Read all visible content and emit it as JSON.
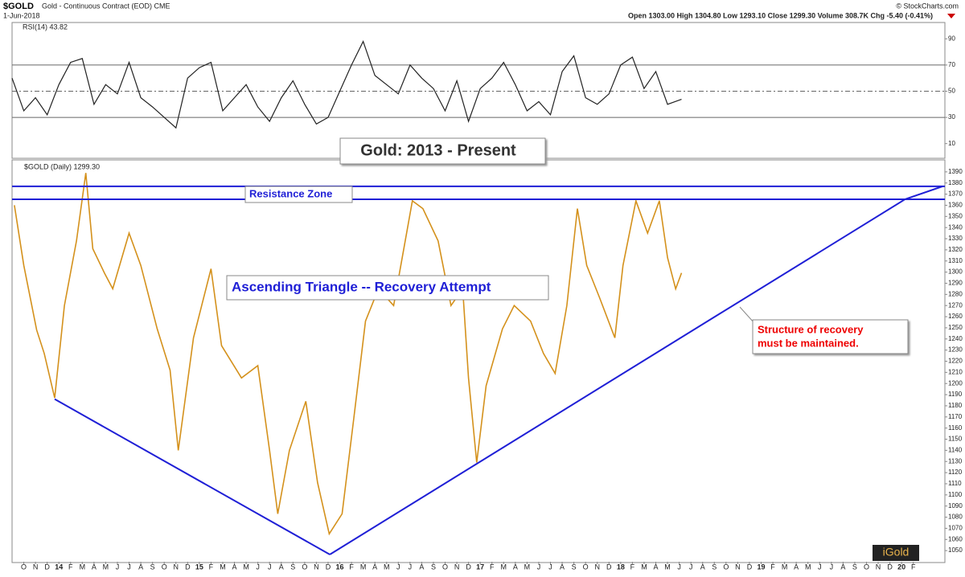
{
  "header": {
    "symbol": "$GOLD",
    "name": "Gold - Continuous Contract (EOD) CME",
    "date": "1-Jun-2018",
    "credit": "© StockCharts.com",
    "quote": "Open 1303.00  High 1304.80  Low 1293.10  Close 1299.30  Volume 308.7K  Chg -5.40 (-0.41%)",
    "logo": "iGold"
  },
  "chart_data": [
    {
      "type": "line",
      "label": "RSI(14) 43.82",
      "color": "#222222",
      "x": [
        -4,
        -3,
        -2,
        -1,
        0,
        1,
        2,
        3,
        4,
        5,
        6,
        7,
        8,
        9,
        10,
        11,
        12,
        13,
        14,
        15,
        16,
        17,
        18,
        19,
        20,
        21,
        22,
        23,
        24,
        25,
        26,
        27,
        28,
        29,
        30,
        31,
        32,
        33,
        34,
        35,
        36,
        37,
        38,
        39,
        40,
        41,
        42,
        43,
        44,
        45,
        46,
        47,
        48,
        49,
        50,
        51,
        52,
        53.2
      ],
      "values": [
        60,
        35,
        45,
        32,
        55,
        72,
        75,
        40,
        55,
        48,
        72,
        45,
        38,
        30,
        22,
        60,
        68,
        72,
        35,
        45,
        55,
        38,
        27,
        45,
        58,
        40,
        25,
        30,
        50,
        70,
        88,
        62,
        55,
        48,
        70,
        60,
        52,
        35,
        58,
        27,
        52,
        60,
        72,
        55,
        35,
        42,
        32,
        65,
        77,
        45,
        40,
        48,
        70,
        76,
        52,
        65,
        40,
        43.82
      ],
      "xlim": [
        -4,
        75.7
      ],
      "ylim": [
        0,
        100
      ],
      "yticks": [
        10,
        30,
        50,
        70,
        90
      ],
      "reference_lines": [
        30,
        50,
        70
      ]
    },
    {
      "type": "line",
      "label": "$GOLD (Daily) 1299.30",
      "color": "#d4911c",
      "title": "Gold: 2013 - Present",
      "x": [
        -3.8,
        -3.0,
        -1.9,
        -1.25,
        -0.36,
        0.47,
        1.5,
        2.3,
        2.9,
        3.9,
        4.6,
        6.0,
        7.0,
        8.4,
        9.5,
        10.2,
        11.5,
        13.0,
        13.9,
        15.6,
        17.0,
        18.0,
        18.7,
        19.7,
        21.1,
        22.1,
        23.1,
        24.2,
        25.2,
        26.2,
        27.3,
        28.6,
        30.2,
        31.1,
        32.4,
        33.5,
        34.5,
        35.0,
        35.7,
        36.5,
        37.9,
        38.9,
        40.3,
        41.4,
        42.4,
        43.4,
        44.3,
        45.1,
        46.2,
        47.5,
        48.2,
        49.3,
        50.3,
        51.3,
        52.0,
        52.7,
        53.2
      ],
      "values": [
        1360,
        1306,
        1248,
        1227,
        1187,
        1270,
        1328,
        1389,
        1321,
        1299,
        1285,
        1335,
        1306,
        1249,
        1212,
        1140,
        1241,
        1303,
        1234,
        1205,
        1216,
        1140,
        1083,
        1140,
        1184,
        1111,
        1065,
        1083,
        1169,
        1256,
        1285,
        1270,
        1364,
        1357,
        1328,
        1270,
        1285,
        1205,
        1129,
        1198,
        1249,
        1270,
        1256,
        1227,
        1209,
        1270,
        1357,
        1306,
        1277,
        1241,
        1306,
        1364,
        1335,
        1364,
        1313,
        1285,
        1299.3
      ],
      "xlim": [
        -4,
        75.7
      ],
      "ylim": [
        1040,
        1400
      ],
      "yticks": [
        1050,
        1060,
        1070,
        1080,
        1090,
        1100,
        1110,
        1120,
        1130,
        1140,
        1150,
        1160,
        1170,
        1180,
        1190,
        1200,
        1210,
        1220,
        1230,
        1240,
        1250,
        1260,
        1270,
        1280,
        1290,
        1300,
        1310,
        1320,
        1330,
        1340,
        1350,
        1360,
        1370,
        1380,
        1390
      ],
      "xticks": [
        {
          "value": -3,
          "label": "O"
        },
        {
          "value": -2,
          "label": "N"
        },
        {
          "value": -1,
          "label": "D"
        },
        {
          "value": 0,
          "label": "14"
        },
        {
          "value": 1,
          "label": "F"
        },
        {
          "value": 2,
          "label": "M"
        },
        {
          "value": 3,
          "label": "A"
        },
        {
          "value": 4,
          "label": "M"
        },
        {
          "value": 5,
          "label": "J"
        },
        {
          "value": 6,
          "label": "J"
        },
        {
          "value": 7,
          "label": "A"
        },
        {
          "value": 8,
          "label": "S"
        },
        {
          "value": 9,
          "label": "O"
        },
        {
          "value": 10,
          "label": "N"
        },
        {
          "value": 11,
          "label": "D"
        },
        {
          "value": 12,
          "label": "15"
        },
        {
          "value": 13,
          "label": "F"
        },
        {
          "value": 14,
          "label": "M"
        },
        {
          "value": 15,
          "label": "A"
        },
        {
          "value": 16,
          "label": "M"
        },
        {
          "value": 17,
          "label": "J"
        },
        {
          "value": 18,
          "label": "J"
        },
        {
          "value": 19,
          "label": "A"
        },
        {
          "value": 20,
          "label": "S"
        },
        {
          "value": 21,
          "label": "O"
        },
        {
          "value": 22,
          "label": "N"
        },
        {
          "value": 23,
          "label": "D"
        },
        {
          "value": 24,
          "label": "16"
        },
        {
          "value": 25,
          "label": "F"
        },
        {
          "value": 26,
          "label": "M"
        },
        {
          "value": 27,
          "label": "A"
        },
        {
          "value": 28,
          "label": "M"
        },
        {
          "value": 29,
          "label": "J"
        },
        {
          "value": 30,
          "label": "J"
        },
        {
          "value": 31,
          "label": "A"
        },
        {
          "value": 32,
          "label": "S"
        },
        {
          "value": 33,
          "label": "O"
        },
        {
          "value": 34,
          "label": "N"
        },
        {
          "value": 35,
          "label": "D"
        },
        {
          "value": 36,
          "label": "17"
        },
        {
          "value": 37,
          "label": "F"
        },
        {
          "value": 38,
          "label": "M"
        },
        {
          "value": 39,
          "label": "A"
        },
        {
          "value": 40,
          "label": "M"
        },
        {
          "value": 41,
          "label": "J"
        },
        {
          "value": 42,
          "label": "J"
        },
        {
          "value": 43,
          "label": "A"
        },
        {
          "value": 44,
          "label": "S"
        },
        {
          "value": 45,
          "label": "O"
        },
        {
          "value": 46,
          "label": "N"
        },
        {
          "value": 47,
          "label": "D"
        },
        {
          "value": 48,
          "label": "18"
        },
        {
          "value": 49,
          "label": "F"
        },
        {
          "value": 50,
          "label": "M"
        },
        {
          "value": 51,
          "label": "A"
        },
        {
          "value": 52,
          "label": "M"
        },
        {
          "value": 53,
          "label": "J"
        },
        {
          "value": 54,
          "label": "J"
        },
        {
          "value": 55,
          "label": "A"
        },
        {
          "value": 56,
          "label": "S"
        },
        {
          "value": 57,
          "label": "O"
        },
        {
          "value": 58,
          "label": "N"
        },
        {
          "value": 59,
          "label": "D"
        },
        {
          "value": 60,
          "label": "19"
        },
        {
          "value": 61,
          "label": "F"
        },
        {
          "value": 62,
          "label": "M"
        },
        {
          "value": 63,
          "label": "A"
        },
        {
          "value": 64,
          "label": "M"
        },
        {
          "value": 65,
          "label": "J"
        },
        {
          "value": 66,
          "label": "J"
        },
        {
          "value": 67,
          "label": "A"
        },
        {
          "value": 68,
          "label": "S"
        },
        {
          "value": 69,
          "label": "O"
        },
        {
          "value": 70,
          "label": "N"
        },
        {
          "value": 71,
          "label": "D"
        },
        {
          "value": 72,
          "label": "20"
        },
        {
          "value": 73,
          "label": "F"
        }
      ],
      "trendline_color": "#1f1fd6",
      "trendlines": [
        {
          "x": [
            -4,
            75.7
          ],
          "y": [
            1377,
            1377
          ]
        },
        {
          "x": [
            -4,
            75.7
          ],
          "y": [
            1365.4,
            1365.4
          ]
        },
        {
          "x": [
            -0.36,
            23.15
          ],
          "y": [
            1186,
            1046.5
          ]
        },
        {
          "x": [
            23.15,
            72.3
          ],
          "y": [
            1046.5,
            1365.4
          ]
        },
        {
          "x": [
            72.3,
            75.5
          ],
          "y": [
            1365.4,
            1377
          ]
        }
      ],
      "annotations": {
        "resistance": "Resistance Zone",
        "pattern": "Ascending Triangle -- Recovery Attempt",
        "note": [
          "Structure of recovery",
          "must be maintained."
        ]
      }
    }
  ]
}
